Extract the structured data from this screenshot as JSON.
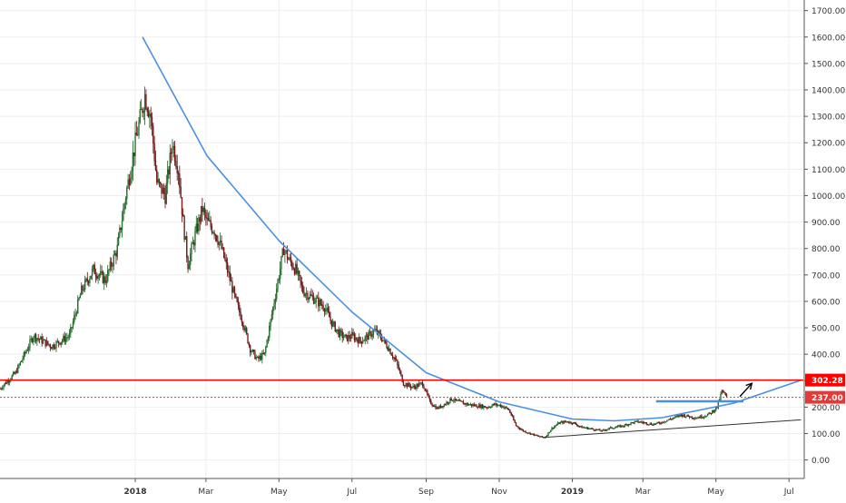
{
  "chart_data": {
    "type": "candlestick",
    "x_tick_labels": [
      "2018",
      "Mar",
      "May",
      "Jul",
      "Sep",
      "Nov",
      "2019",
      "Mar",
      "May",
      "Jul"
    ],
    "x_tick_bold": [
      true,
      false,
      false,
      false,
      false,
      false,
      true,
      false,
      false,
      false
    ],
    "y_tick_labels": [
      "0.00",
      "100.00",
      "200.00",
      "300.00",
      "400.00",
      "500.00",
      "600.00",
      "700.00",
      "800.00",
      "900.00",
      "1000.00",
      "1100.00",
      "1200.00",
      "1300.00",
      "1400.00",
      "1500.00",
      "1600.00",
      "1700.00"
    ],
    "y_ticks": [
      0,
      100,
      200,
      300,
      400,
      500,
      600,
      700,
      800,
      900,
      1000,
      1100,
      1200,
      1300,
      1400,
      1500,
      1600,
      1700
    ],
    "ylim": [
      -70,
      1740
    ],
    "xlim_days": [
      -113,
      558
    ],
    "x_tick_days": [
      0,
      59,
      120,
      181,
      243,
      304,
      365,
      424,
      485,
      546
    ],
    "price_anchors": [
      {
        "d": -113,
        "p": 270
      },
      {
        "d": -100,
        "p": 330
      },
      {
        "d": -85,
        "p": 470
      },
      {
        "d": -70,
        "p": 430
      },
      {
        "d": -55,
        "p": 470
      },
      {
        "d": -45,
        "p": 640
      },
      {
        "d": -35,
        "p": 720
      },
      {
        "d": -25,
        "p": 680
      },
      {
        "d": -15,
        "p": 800
      },
      {
        "d": -8,
        "p": 1000
      },
      {
        "d": 0,
        "p": 1200
      },
      {
        "d": 8,
        "p": 1380
      },
      {
        "d": 13,
        "p": 1300
      },
      {
        "d": 18,
        "p": 1050
      },
      {
        "d": 25,
        "p": 1000
      },
      {
        "d": 31,
        "p": 1200
      },
      {
        "d": 36,
        "p": 1100
      },
      {
        "d": 40,
        "p": 900
      },
      {
        "d": 44,
        "p": 740
      },
      {
        "d": 50,
        "p": 850
      },
      {
        "d": 56,
        "p": 950
      },
      {
        "d": 60,
        "p": 900
      },
      {
        "d": 66,
        "p": 870
      },
      {
        "d": 72,
        "p": 800
      },
      {
        "d": 78,
        "p": 700
      },
      {
        "d": 84,
        "p": 600
      },
      {
        "d": 90,
        "p": 520
      },
      {
        "d": 96,
        "p": 420
      },
      {
        "d": 102,
        "p": 380
      },
      {
        "d": 108,
        "p": 400
      },
      {
        "d": 114,
        "p": 550
      },
      {
        "d": 120,
        "p": 700
      },
      {
        "d": 124,
        "p": 800
      },
      {
        "d": 128,
        "p": 760
      },
      {
        "d": 134,
        "p": 720
      },
      {
        "d": 140,
        "p": 640
      },
      {
        "d": 146,
        "p": 620
      },
      {
        "d": 152,
        "p": 600
      },
      {
        "d": 158,
        "p": 580
      },
      {
        "d": 164,
        "p": 520
      },
      {
        "d": 170,
        "p": 480
      },
      {
        "d": 176,
        "p": 460
      },
      {
        "d": 181,
        "p": 470
      },
      {
        "d": 188,
        "p": 450
      },
      {
        "d": 195,
        "p": 470
      },
      {
        "d": 200,
        "p": 490
      },
      {
        "d": 206,
        "p": 460
      },
      {
        "d": 212,
        "p": 420
      },
      {
        "d": 218,
        "p": 370
      },
      {
        "d": 224,
        "p": 290
      },
      {
        "d": 232,
        "p": 275
      },
      {
        "d": 240,
        "p": 290
      },
      {
        "d": 246,
        "p": 220
      },
      {
        "d": 252,
        "p": 195
      },
      {
        "d": 258,
        "p": 210
      },
      {
        "d": 264,
        "p": 230
      },
      {
        "d": 270,
        "p": 220
      },
      {
        "d": 278,
        "p": 210
      },
      {
        "d": 286,
        "p": 205
      },
      {
        "d": 294,
        "p": 200
      },
      {
        "d": 300,
        "p": 210
      },
      {
        "d": 306,
        "p": 205
      },
      {
        "d": 312,
        "p": 190
      },
      {
        "d": 318,
        "p": 130
      },
      {
        "d": 324,
        "p": 110
      },
      {
        "d": 330,
        "p": 100
      },
      {
        "d": 336,
        "p": 90
      },
      {
        "d": 342,
        "p": 85
      },
      {
        "d": 348,
        "p": 120
      },
      {
        "d": 354,
        "p": 140
      },
      {
        "d": 360,
        "p": 145
      },
      {
        "d": 366,
        "p": 140
      },
      {
        "d": 372,
        "p": 125
      },
      {
        "d": 378,
        "p": 120
      },
      {
        "d": 384,
        "p": 115
      },
      {
        "d": 390,
        "p": 110
      },
      {
        "d": 396,
        "p": 120
      },
      {
        "d": 402,
        "p": 125
      },
      {
        "d": 408,
        "p": 130
      },
      {
        "d": 414,
        "p": 140
      },
      {
        "d": 420,
        "p": 145
      },
      {
        "d": 426,
        "p": 140
      },
      {
        "d": 432,
        "p": 135
      },
      {
        "d": 438,
        "p": 140
      },
      {
        "d": 444,
        "p": 150
      },
      {
        "d": 450,
        "p": 160
      },
      {
        "d": 456,
        "p": 170
      },
      {
        "d": 462,
        "p": 165
      },
      {
        "d": 468,
        "p": 160
      },
      {
        "d": 474,
        "p": 165
      },
      {
        "d": 480,
        "p": 175
      },
      {
        "d": 486,
        "p": 200
      },
      {
        "d": 490,
        "p": 260
      },
      {
        "d": 494,
        "p": 237
      }
    ],
    "annotations": {
      "resistance_level": 302.28,
      "current_price": 237.0,
      "resistance_label": "302.28",
      "current_label": "237.00",
      "arc_points": [
        {
          "d": 6,
          "p": 1600
        },
        {
          "d": 60,
          "p": 1150
        },
        {
          "d": 120,
          "p": 830
        },
        {
          "d": 181,
          "p": 560
        },
        {
          "d": 243,
          "p": 330
        },
        {
          "d": 304,
          "p": 220
        },
        {
          "d": 365,
          "p": 155
        },
        {
          "d": 400,
          "p": 148
        },
        {
          "d": 440,
          "p": 160
        },
        {
          "d": 500,
          "p": 215
        },
        {
          "d": 556,
          "p": 302
        }
      ],
      "neckline": {
        "d1": 435,
        "d2": 508,
        "p": 222
      },
      "support": {
        "d1": 340,
        "d2": 556,
        "p1": 85,
        "p2": 152
      },
      "arrow": {
        "d1": 505,
        "d2": 515,
        "p1": 240,
        "p2": 290
      }
    },
    "colors": {
      "up": "#26a69a",
      "down": "#ef5350",
      "up_body": "#2e7d32",
      "down_body": "#8b1a1a",
      "arc": "#4a90e2",
      "resistance": "#ff0000",
      "current": "#e53935",
      "support": "#333333",
      "grid": "#eeeeee"
    }
  }
}
